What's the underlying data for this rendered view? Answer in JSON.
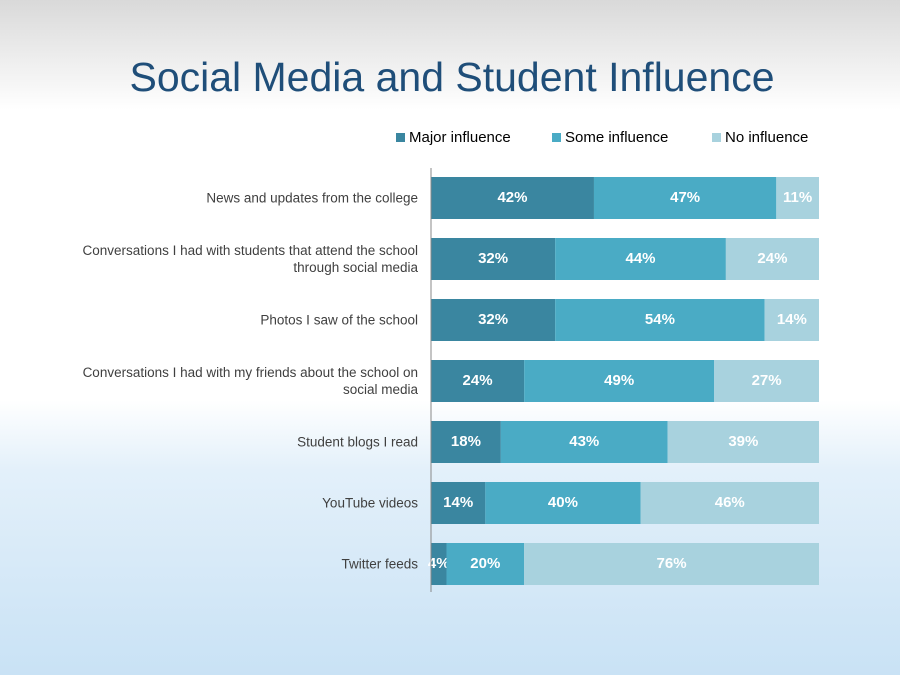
{
  "chart_data": {
    "type": "stacked-bar-horizontal",
    "title": "Social Media and Student Influence",
    "categories": [
      "News and updates from the college",
      "Conversations I had with students that attend the school through social media",
      "Photos I saw of the school",
      "Conversations I had with my friends about the school on social media",
      "Student blogs I read",
      "YouTube videos",
      "Twitter feeds"
    ],
    "xlim": [
      0,
      100
    ],
    "series": [
      {
        "name": "Major influence",
        "color": "#3a86a0",
        "values": [
          42,
          32,
          32,
          24,
          18,
          14,
          4
        ],
        "value_labels": [
          "42%",
          "32%",
          "32%",
          "24%",
          "18%",
          "14%",
          "4%"
        ]
      },
      {
        "name": "Some influence",
        "color": "#4aabc5",
        "values": [
          47,
          44,
          54,
          49,
          43,
          40,
          20
        ],
        "value_labels": [
          "47%",
          "44%",
          "54%",
          "49%",
          "43%",
          "40%",
          "20%"
        ]
      },
      {
        "name": "No influence",
        "color": "#a8d2de",
        "values": [
          11,
          24,
          14,
          27,
          39,
          46,
          76
        ],
        "value_labels": [
          "11%",
          "24%",
          "14%",
          "27%",
          "39%",
          "46%",
          "76%"
        ]
      }
    ]
  }
}
